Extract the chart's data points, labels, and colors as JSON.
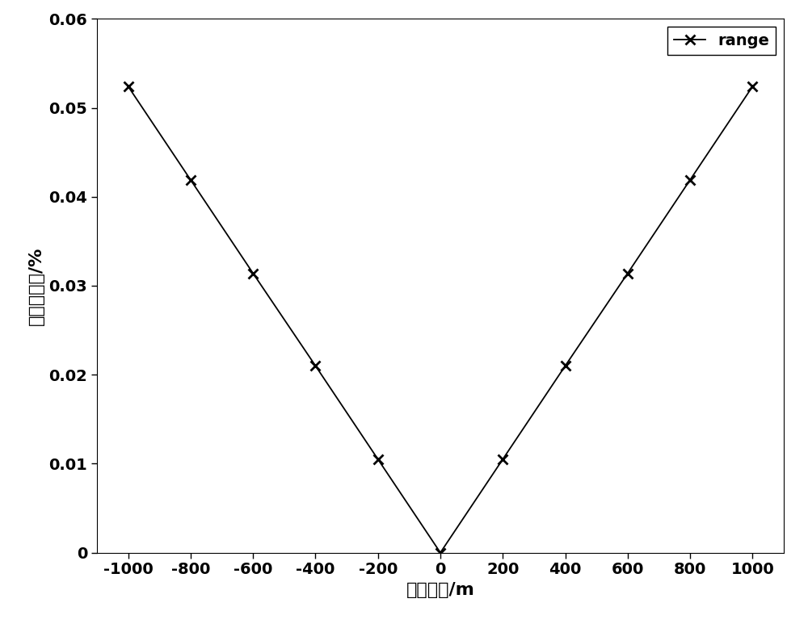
{
  "x": [
    -1000,
    -800,
    -600,
    -400,
    -200,
    0,
    200,
    400,
    600,
    800,
    1000
  ],
  "y": [
    0.0524,
    0.0419,
    0.0314,
    0.021,
    0.0105,
    0.0,
    0.0105,
    0.021,
    0.0314,
    0.0419,
    0.0524
  ],
  "xlabel": "高度误差/m",
  "ylabel": "误差百分比/%",
  "xlim": [
    -1100,
    1100
  ],
  "ylim": [
    0,
    0.06
  ],
  "xticks": [
    -1000,
    -800,
    -600,
    -400,
    -200,
    0,
    200,
    400,
    600,
    800,
    1000
  ],
  "yticks": [
    0,
    0.01,
    0.02,
    0.03,
    0.04,
    0.05,
    0.06
  ],
  "ytick_labels": [
    "0",
    "0.01",
    "0.02",
    "0.03",
    "0.04",
    "0.05",
    "0.06"
  ],
  "legend_label": "range",
  "line_color": "#000000",
  "marker": "x",
  "marker_size": 9,
  "marker_edge_width": 2.0,
  "line_width": 1.3,
  "background_color": "#ffffff",
  "grid": false,
  "legend_loc": "upper right",
  "axis_fontsize": 16,
  "tick_fontsize": 14,
  "legend_fontsize": 14
}
